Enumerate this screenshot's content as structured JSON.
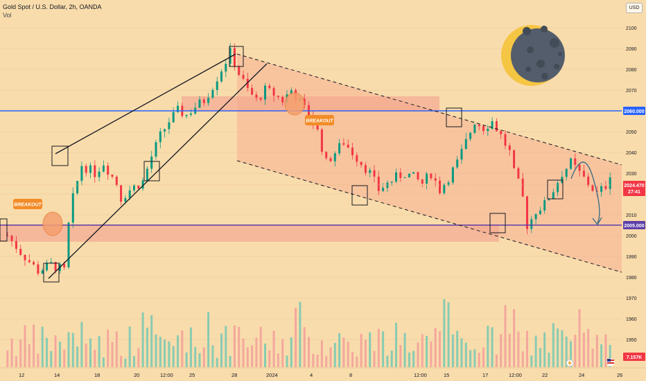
{
  "header": {
    "symbol_line": "Gold Spot / U.S. Dollar, 2h, OANDA",
    "volume_label": "Vol",
    "currency": "USD"
  },
  "annotations": {
    "breakout_label": "BREAKOUT"
  },
  "price_tags": {
    "level_upper": "2060.000",
    "level_lower": "2005.000",
    "last_price": "2024.470",
    "countdown": "27:41",
    "volume_value": "7.157K"
  },
  "colors": {
    "background": "#f9dcab",
    "up_candle": "#089981",
    "down_candle": "#f23645",
    "zone_fill": "#f7a68f",
    "upper_level": "#2962ff",
    "lower_level": "#5b3fa8",
    "last_price_tag": "#f23645"
  },
  "icons": [
    "moon-icon",
    "arrow-down-curved-icon",
    "flag-us-icon",
    "lightning-icon"
  ],
  "chart_data": {
    "type": "candlestick",
    "symbol": "Gold Spot / U.S. Dollar",
    "timeframe": "2h",
    "x_ticks": [
      "12",
      "14",
      "18",
      "20",
      "12:00",
      "25",
      "28",
      "2024",
      "4",
      "8",
      "12:00",
      "15",
      "17",
      "12:00",
      "22",
      "24",
      "26"
    ],
    "y_ticks": [
      1950,
      1960,
      1970,
      1980,
      1990,
      2000,
      2010,
      2020,
      2030,
      2040,
      2050,
      2060,
      2070,
      2080,
      2090,
      2100
    ],
    "ylim": [
      1942,
      2112
    ],
    "last_price": 2024.47,
    "levels": [
      2060,
      2005
    ],
    "price_path": [
      [
        1,
        2000
      ],
      [
        4,
        1992
      ],
      [
        8,
        1983
      ],
      [
        11,
        1986
      ],
      [
        14,
        1983
      ],
      [
        15,
        2005
      ],
      [
        16,
        2018
      ],
      [
        18,
        2034
      ],
      [
        21,
        2030
      ],
      [
        23,
        2035
      ],
      [
        26,
        2025
      ],
      [
        27,
        2018
      ],
      [
        29,
        2022
      ],
      [
        32,
        2026
      ],
      [
        34,
        2038
      ],
      [
        36,
        2048
      ],
      [
        38,
        2055
      ],
      [
        40,
        2060
      ],
      [
        42,
        2058
      ],
      [
        44,
        2062
      ],
      [
        46,
        2065
      ],
      [
        48,
        2072
      ],
      [
        50,
        2080
      ],
      [
        52,
        2088
      ],
      [
        54,
        2078
      ],
      [
        56,
        2070
      ],
      [
        58,
        2065
      ],
      [
        60,
        2070
      ],
      [
        62,
        2068
      ],
      [
        64,
        2065
      ],
      [
        66,
        2070
      ],
      [
        68,
        2064
      ],
      [
        70,
        2058
      ],
      [
        72,
        2050
      ],
      [
        74,
        2035
      ],
      [
        76,
        2040
      ],
      [
        78,
        2045
      ],
      [
        80,
        2040
      ],
      [
        82,
        2035
      ],
      [
        84,
        2030
      ],
      [
        86,
        2022
      ],
      [
        88,
        2025
      ],
      [
        90,
        2028
      ],
      [
        92,
        2030
      ],
      [
        94,
        2028
      ],
      [
        96,
        2025
      ],
      [
        98,
        2030
      ],
      [
        100,
        2022
      ],
      [
        102,
        2028
      ],
      [
        104,
        2035
      ],
      [
        106,
        2045
      ],
      [
        108,
        2055
      ],
      [
        110,
        2052
      ],
      [
        112,
        2055
      ],
      [
        114,
        2048
      ],
      [
        116,
        2040
      ],
      [
        117,
        2030
      ],
      [
        118,
        2025
      ],
      [
        119,
        2018
      ],
      [
        120,
        2005
      ],
      [
        121,
        2008
      ],
      [
        122,
        2012
      ],
      [
        124,
        2015
      ],
      [
        126,
        2022
      ],
      [
        128,
        2030
      ],
      [
        130,
        2035
      ],
      [
        132,
        2030
      ],
      [
        134,
        2025
      ],
      [
        136,
        2020
      ],
      [
        138,
        2024
      ],
      [
        139,
        2030
      ]
    ]
  }
}
